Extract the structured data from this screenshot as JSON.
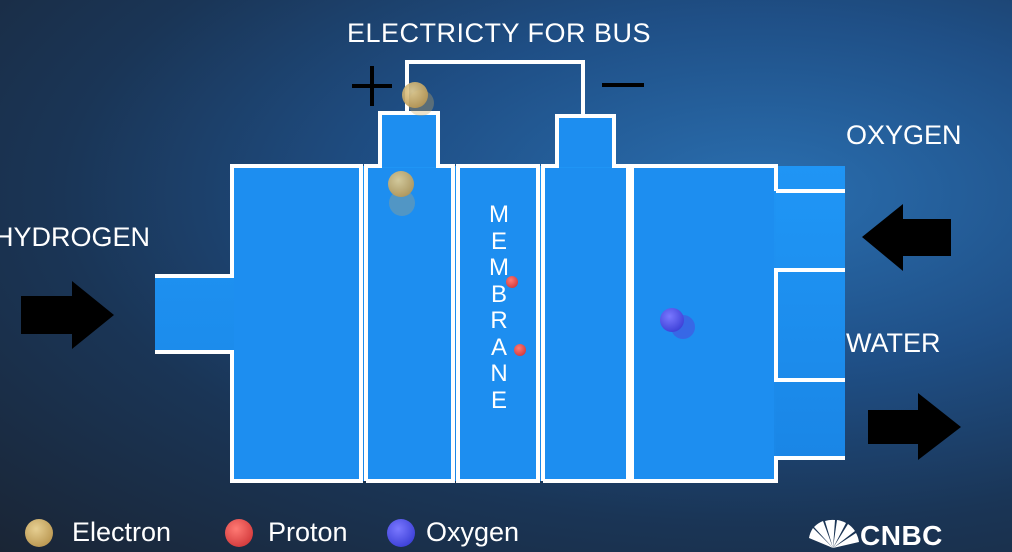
{
  "diagram": {
    "title": "ELECTRICTY FOR BUS",
    "plus_sign": "+",
    "minus_sign": "−",
    "inlet_label": "HYDROGEN",
    "oxygen_label": "OXYGEN",
    "water_label": "WATER",
    "membrane_letters": [
      "M",
      "E",
      "M",
      "B",
      "R",
      "A",
      "N",
      "E"
    ]
  },
  "legend": [
    {
      "label": "Electron",
      "color": "#c9a862"
    },
    {
      "label": "Proton",
      "color": "#e0494b"
    },
    {
      "label": "Oxygen",
      "color": "#4a4fe0"
    }
  ],
  "brand": {
    "name": "CNBC"
  },
  "colors": {
    "cell_fill": "#1d8ef0",
    "outline": "#ffffff",
    "arrow": "#000000"
  }
}
